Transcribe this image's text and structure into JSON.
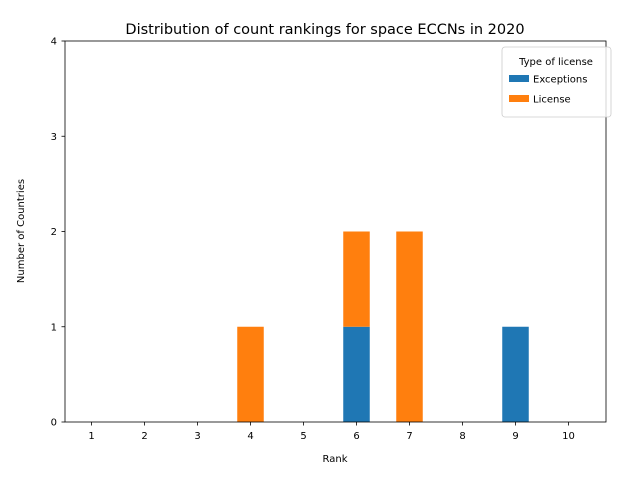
{
  "chart_data": {
    "type": "bar",
    "stacked": true,
    "title": "Distribution of count rankings for space ECCNs in 2020",
    "xlabel": "Rank",
    "ylabel": "Number of Countries",
    "categories": [
      "1",
      "2",
      "3",
      "4",
      "5",
      "6",
      "7",
      "8",
      "9",
      "10"
    ],
    "ylim": [
      0,
      4
    ],
    "yticks": [
      "0",
      "1",
      "2",
      "3",
      "4"
    ],
    "grid": false,
    "legend": {
      "title": "Type of license",
      "placement": "top-right",
      "entries": [
        "Exceptions",
        "License"
      ]
    },
    "series": [
      {
        "name": "Exceptions",
        "color": "#1f77b4",
        "values": [
          0,
          0,
          0,
          0,
          0,
          1,
          0,
          0,
          1,
          0
        ]
      },
      {
        "name": "License",
        "color": "#ff7f0e",
        "values": [
          0,
          0,
          0,
          1,
          0,
          1,
          2,
          0,
          0,
          0
        ]
      }
    ]
  }
}
